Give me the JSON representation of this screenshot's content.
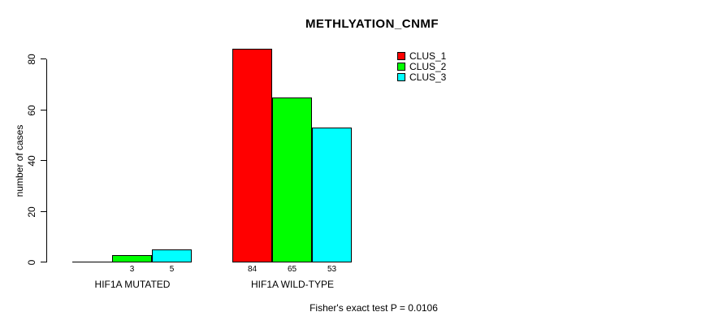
{
  "chart_data": {
    "type": "bar",
    "title": "METHLYATION_CNMF",
    "ylabel": "number of cases",
    "xlabel": "",
    "categories": [
      "HIF1A MUTATED",
      "HIF1A WILD-TYPE"
    ],
    "series": [
      {
        "name": "CLUS_1",
        "color": "#ff0000",
        "values": [
          0,
          84
        ]
      },
      {
        "name": "CLUS_2",
        "color": "#00ff00",
        "values": [
          3,
          65
        ]
      },
      {
        "name": "CLUS_3",
        "color": "#00ffff",
        "values": [
          5,
          53
        ]
      }
    ],
    "bar_value_labels": [
      [
        "",
        "3",
        "5"
      ],
      [
        "84",
        "65",
        "53"
      ]
    ],
    "yticks": [
      0,
      20,
      40,
      60,
      80
    ],
    "ylim": [
      0,
      80
    ],
    "grid": false,
    "legend_position": "top-right",
    "annotation": "Fisher's exact test P = 0.0106",
    "bar_border_color": "#000000",
    "background_color": "#ffffff"
  }
}
